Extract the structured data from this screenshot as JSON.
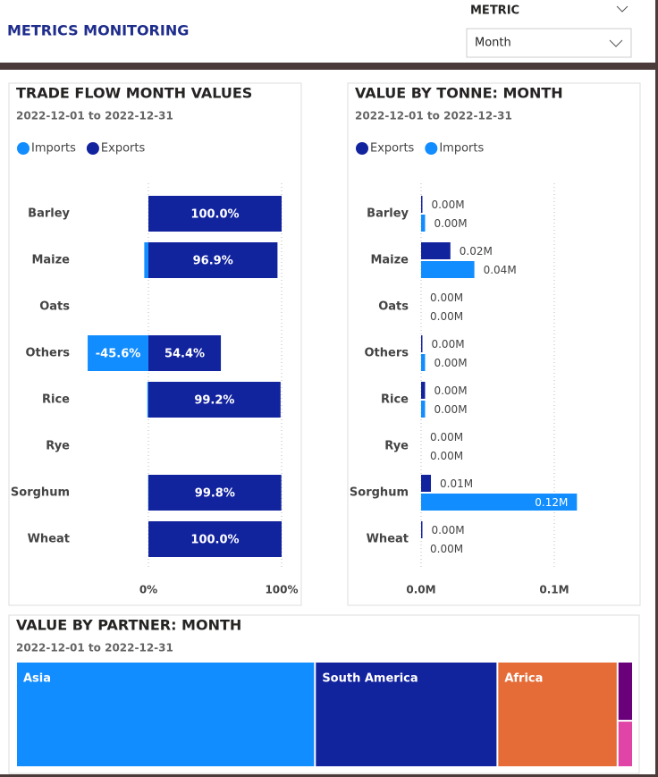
{
  "header": {
    "title": "METRICS MONITORING",
    "filter_label": "METRIC",
    "filter_value": "Month"
  },
  "chart_data": [
    {
      "type": "hbar",
      "title": "TRADE FLOW MONTH VALUES",
      "subtitle": "2022-12-01 to 2022-12-31",
      "categories": [
        "Barley",
        "Maize",
        "Oats",
        "Others",
        "Rice",
        "Rye",
        "Sorghum",
        "Wheat"
      ],
      "stacked": true,
      "series": [
        {
          "name": "Imports",
          "color": "#118dff",
          "values": [
            0,
            -3.1,
            null,
            -45.6,
            -0.8,
            null,
            -0.2,
            0
          ],
          "value_labels": [
            null,
            null,
            null,
            "-45.6%",
            null,
            null,
            null,
            null
          ]
        },
        {
          "name": "Exports",
          "color": "#12239e",
          "values": [
            100,
            96.9,
            null,
            54.4,
            99.2,
            null,
            99.8,
            100
          ],
          "value_labels": [
            "100.0%",
            "96.9%",
            null,
            "54.4%",
            "99.2%",
            null,
            "99.8%",
            "100.0%"
          ]
        }
      ],
      "xlim": [
        -50,
        100
      ],
      "xticks": [
        {
          "value": 0,
          "label": "0%"
        },
        {
          "value": 100,
          "label": "100%"
        }
      ],
      "grid": true
    },
    {
      "type": "hbar",
      "title": "VALUE BY TONNE: MONTH",
      "subtitle": "2022-12-01 to 2022-12-31",
      "categories": [
        "Barley",
        "Maize",
        "Oats",
        "Others",
        "Rice",
        "Rye",
        "Sorghum",
        "Wheat"
      ],
      "stacked": false,
      "series": [
        {
          "name": "Exports",
          "color": "#12239e",
          "values": [
            0.001,
            0.022,
            0,
            0.001,
            0.003,
            0,
            0.0074,
            0.001
          ],
          "value_labels": [
            "0.00M",
            "0.02M",
            "0.00M",
            "0.00M",
            "0.00M",
            "0.00M",
            "0.01M",
            "0.00M"
          ]
        },
        {
          "name": "Imports",
          "color": "#118dff",
          "values": [
            0.003,
            0.04,
            0,
            0.003,
            0.003,
            0,
            0.117,
            0
          ],
          "value_labels": [
            "0.00M",
            "0.04M",
            "0.00M",
            "0.00M",
            "0.00M",
            "0.00M",
            "0.12M",
            "0.00M"
          ]
        }
      ],
      "xlim": [
        0,
        0.15
      ],
      "xticks": [
        {
          "value": 0,
          "label": "0.0M"
        },
        {
          "value": 0.1,
          "label": "0.1M"
        }
      ],
      "grid": true
    },
    {
      "type": "treemap",
      "title": "VALUE BY PARTNER: MONTH",
      "subtitle": "2022-12-01 to 2022-12-31",
      "categories": [
        "Asia",
        "South America",
        "Africa",
        null,
        null
      ],
      "values": [
        48.5,
        29.6,
        19.5,
        1.4,
        1.1
      ],
      "colors": [
        "#118dff",
        "#12239e",
        "#e66c37",
        "#6b007b",
        "#e044a7"
      ]
    }
  ]
}
